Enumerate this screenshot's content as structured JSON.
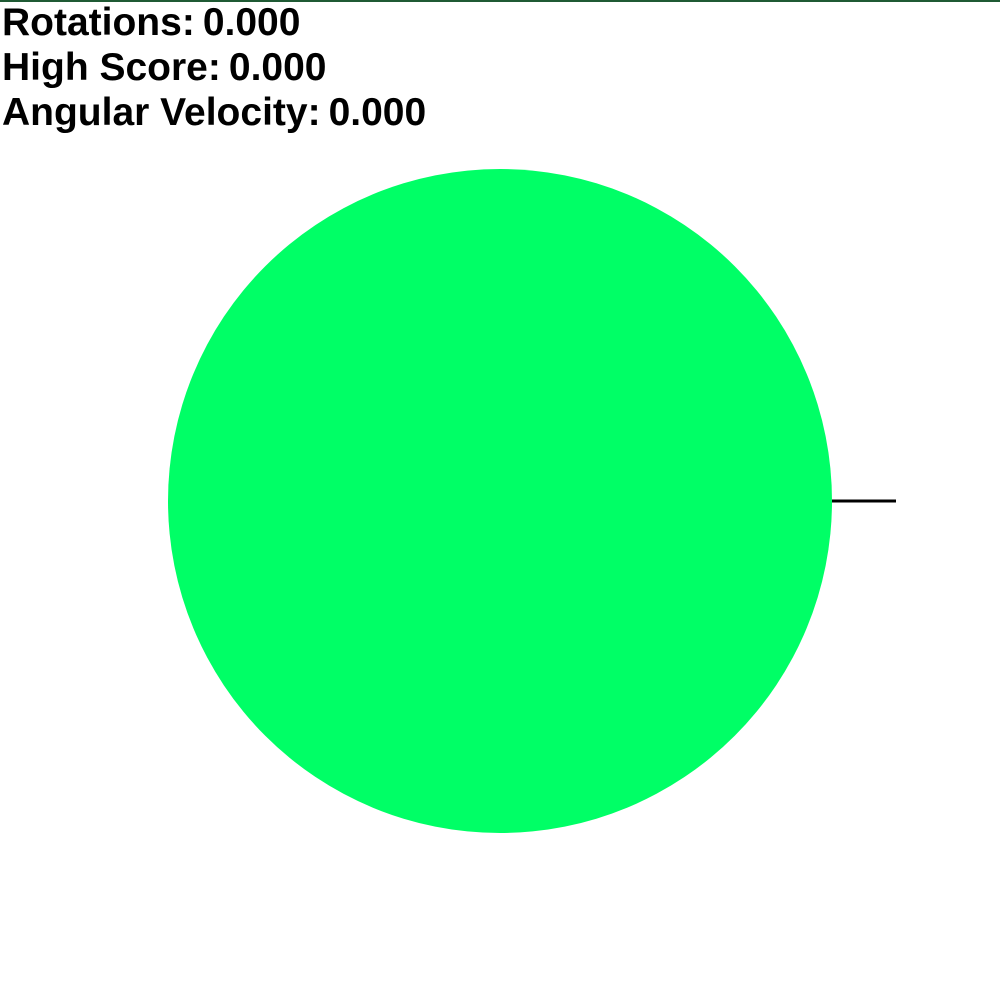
{
  "hud": {
    "rotations_label": "Rotations:",
    "rotations_value": "0.000",
    "high_score_label": "High Score:",
    "high_score_value": "0.000",
    "angular_velocity_label": "Angular Velocity:",
    "angular_velocity_value": "0.000"
  },
  "wheel": {
    "color": "#00ff66",
    "marker_color": "#000000",
    "rotation_angle_degrees": 0
  },
  "colors": {
    "background": "#ffffff",
    "top_border": "#1f5a34",
    "text": "#000000"
  }
}
